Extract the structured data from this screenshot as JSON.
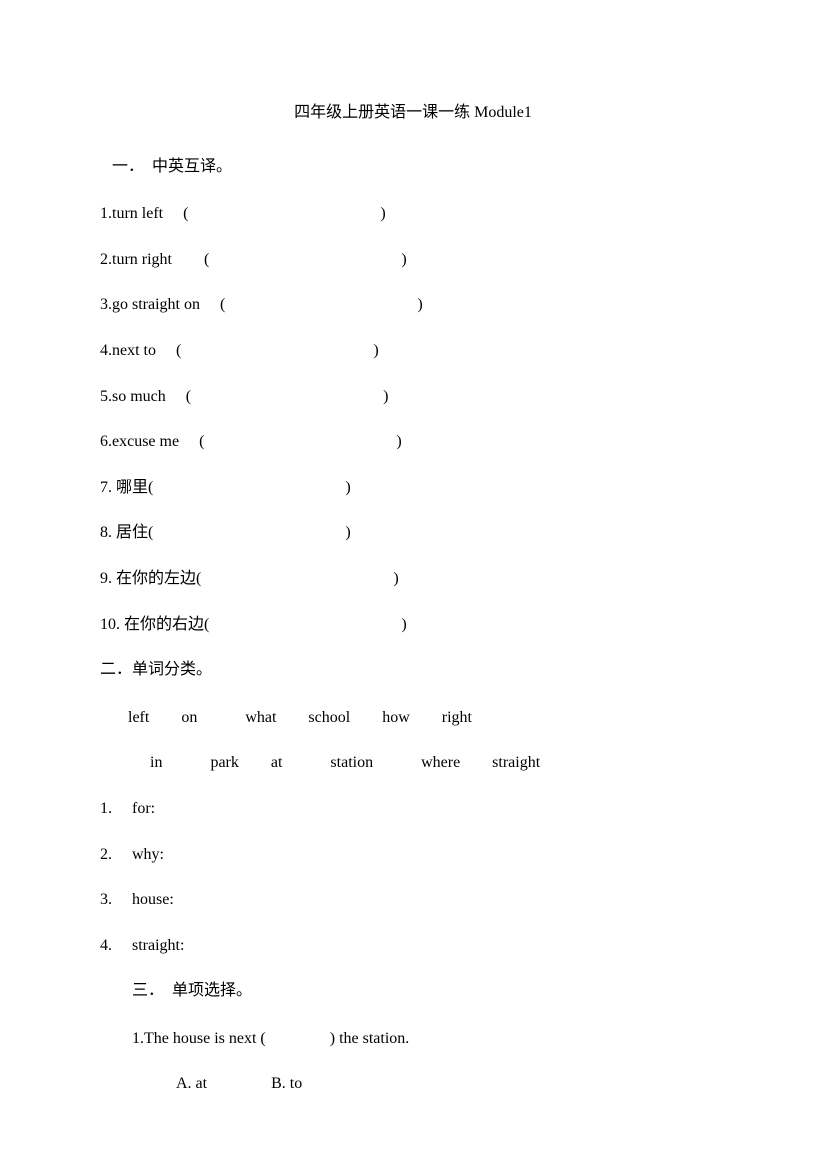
{
  "title": "四年级上册英语一课一练 Module1",
  "section1": {
    "header": "一．　中英互译。",
    "items": [
      "1.turn left　 (　　　　　　　　　　　　)",
      "2.turn right　　(　　　　　　　　　　　　)",
      "3.go straight on　 (　　　　　　　　　　　　)",
      "4.next to　 (　　　　　　　　　　　　)",
      "5.so much　 (　　　　　　　　　　　　)",
      "6.excuse me　 (　　　　　　　　　　　　)",
      "7. 哪里(　　　　　　　　　　　　)",
      "8. 居住(　　　　　　　　　　　　)",
      "9. 在你的左边(　　　　　　　　　　　　)",
      "10. 在你的右边(　　　　　　　　　　　　)"
    ]
  },
  "section2": {
    "header": "二．单词分类。",
    "bank_line1": "left　　on　　　what　　school　　how　　right",
    "bank_line2": "in　　　park　　at　　　station　　　where　　straight",
    "items": [
      "1.　 for:",
      "2.　 why:",
      "3.　 house:",
      "4.　 straight:"
    ]
  },
  "section3": {
    "header": "三．　单项选择。",
    "question": "1.The house is next (　　　　) the station.",
    "choices": "A. at　　　　B. to"
  }
}
